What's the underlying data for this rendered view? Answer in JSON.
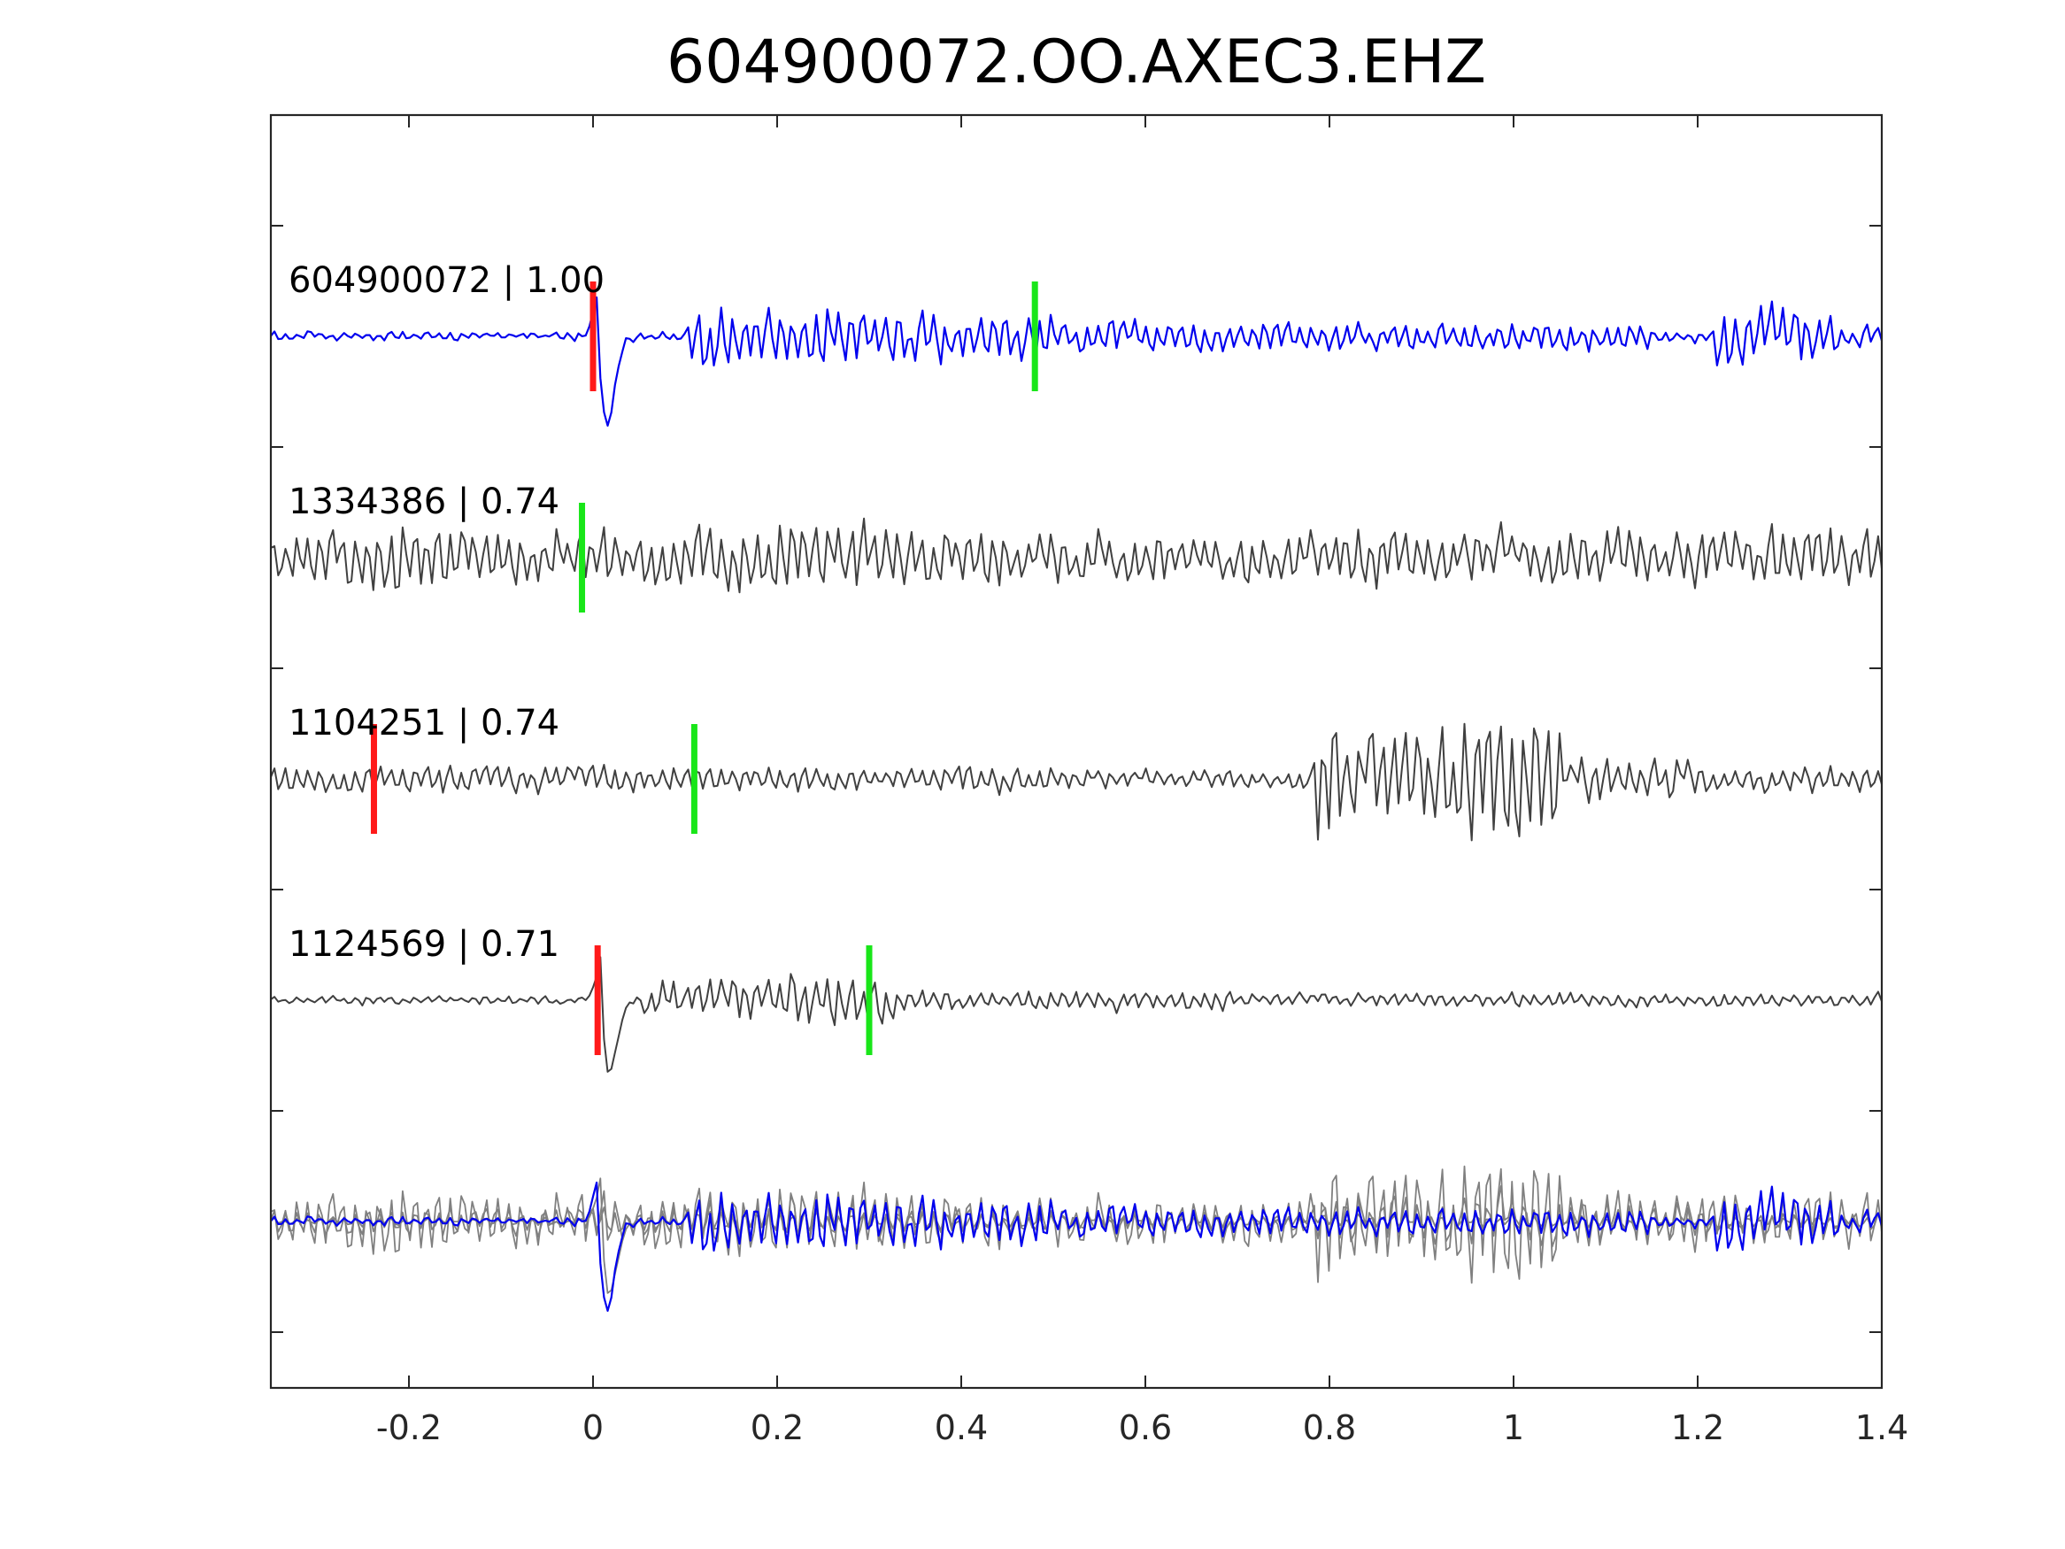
{
  "chart_data": {
    "type": "line",
    "title": "604900072.OO.AXEC3.EHZ",
    "xlabel": "",
    "ylabel": "",
    "xlim": [
      -0.35,
      1.4
    ],
    "x_ticks": [
      -0.2,
      0,
      0.2,
      0.4,
      0.6,
      0.8,
      1,
      1.2,
      1.4
    ],
    "x_tick_labels": [
      "-0.2",
      "0",
      "0.2",
      "0.4",
      "0.6",
      "0.8",
      "1",
      "1.2",
      "1.4"
    ],
    "grid": false,
    "colors": {
      "master": "#0000ee",
      "correlated": "#404040",
      "stack_other": "#808080",
      "p_pick": "#ff1a1a",
      "s_pick": "#19e619"
    },
    "traces": [
      {
        "label": "604900072 | 1.00",
        "event_id": "604900072",
        "correlation": 1.0,
        "color_key": "master",
        "p_pick": 0.0,
        "s_pick": 0.48
      },
      {
        "label": "1334386 | 0.74",
        "event_id": "1334386",
        "correlation": 0.74,
        "color_key": "correlated",
        "p_pick": null,
        "s_pick": -0.012
      },
      {
        "label": "1104251 | 0.74",
        "event_id": "1104251",
        "correlation": 0.74,
        "color_key": "correlated",
        "p_pick": -0.238,
        "s_pick": 0.11
      },
      {
        "label": "1124569 | 0.71",
        "event_id": "1124569",
        "correlation": 0.71,
        "color_key": "correlated",
        "p_pick": 0.005,
        "s_pick": 0.3
      }
    ],
    "overlay": {
      "description_of_rows": "all traces superimposed",
      "master_color_key": "master",
      "others_color_key": "stack_other"
    }
  }
}
